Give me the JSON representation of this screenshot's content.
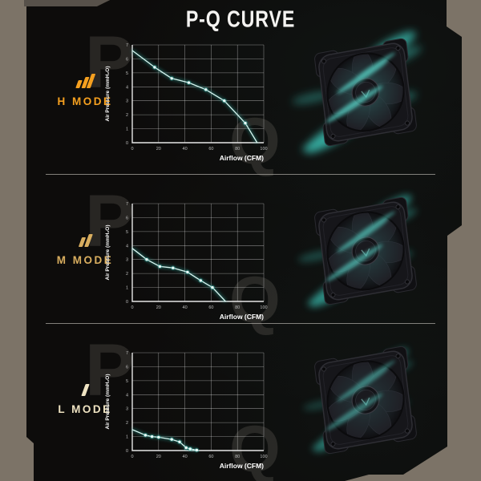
{
  "title": "P-Q CURVE",
  "watermark": {
    "p": "P",
    "q": "Q"
  },
  "modes": [
    {
      "label": "H MODE",
      "bars": 3,
      "color": "#F5A01F",
      "intensity": 1.0
    },
    {
      "label": "M MODE",
      "bars": 2,
      "color": "#D9AE5F",
      "intensity": 0.75
    },
    {
      "label": "L MODE",
      "bars": 1,
      "color": "#EFE3C2",
      "intensity": 0.5
    }
  ],
  "chart_data": [
    {
      "type": "line",
      "series_label": "H MODE",
      "xlabel": "Airflow (CFM)",
      "ylabel": "Air Pressure (mmH₂O)",
      "xlim": [
        0,
        100
      ],
      "ylim": [
        0,
        7
      ],
      "xticks": [
        0,
        20,
        40,
        60,
        80,
        100
      ],
      "yticks": [
        0,
        1,
        2,
        3,
        4,
        5,
        6,
        7
      ],
      "grid": true,
      "legend": "none",
      "line_color": "#D9F6F1",
      "glow_color": "#2FA89E",
      "points": [
        [
          0,
          6.6
        ],
        [
          17,
          5.4
        ],
        [
          30,
          4.6
        ],
        [
          43,
          4.3
        ],
        [
          56,
          3.8
        ],
        [
          70,
          3.0
        ],
        [
          86,
          1.4
        ],
        [
          95,
          0
        ]
      ],
      "markers": [
        [
          17,
          5.4
        ],
        [
          30,
          4.6
        ],
        [
          43,
          4.3
        ],
        [
          56,
          3.8
        ],
        [
          70,
          3.0
        ],
        [
          86,
          1.4
        ]
      ]
    },
    {
      "type": "line",
      "series_label": "M MODE",
      "xlabel": "Airflow (CFM)",
      "ylabel": "Air Pressure (mmH₂O)",
      "xlim": [
        0,
        100
      ],
      "ylim": [
        0,
        7
      ],
      "xticks": [
        0,
        20,
        40,
        60,
        80,
        100
      ],
      "yticks": [
        0,
        1,
        2,
        3,
        4,
        5,
        6,
        7
      ],
      "grid": true,
      "legend": "none",
      "line_color": "#D9F6F1",
      "glow_color": "#2FA89E",
      "points": [
        [
          0,
          3.8
        ],
        [
          11,
          3.0
        ],
        [
          21,
          2.5
        ],
        [
          31,
          2.4
        ],
        [
          42,
          2.1
        ],
        [
          52,
          1.5
        ],
        [
          61,
          1.0
        ],
        [
          71,
          0
        ]
      ],
      "markers": [
        [
          11,
          3.0
        ],
        [
          21,
          2.5
        ],
        [
          31,
          2.4
        ],
        [
          42,
          2.1
        ],
        [
          52,
          1.5
        ],
        [
          61,
          1.0
        ]
      ]
    },
    {
      "type": "line",
      "series_label": "L MODE",
      "xlabel": "Airflow (CFM)",
      "ylabel": "Air Pressure (mmH₂O)",
      "xlim": [
        0,
        100
      ],
      "ylim": [
        0,
        7
      ],
      "xticks": [
        0,
        20,
        40,
        60,
        80,
        100
      ],
      "yticks": [
        0,
        1,
        2,
        3,
        4,
        5,
        6,
        7
      ],
      "grid": true,
      "legend": "none",
      "line_color": "#D9F6F1",
      "glow_color": "#2FA89E",
      "points": [
        [
          0,
          1.5
        ],
        [
          10,
          1.1
        ],
        [
          15,
          1.0
        ],
        [
          20,
          0.95
        ],
        [
          30,
          0.8
        ],
        [
          36,
          0.62
        ],
        [
          41,
          0.2
        ],
        [
          44,
          0.12
        ],
        [
          49,
          0.03
        ]
      ],
      "markers": [
        [
          10,
          1.1
        ],
        [
          15,
          1.0
        ],
        [
          20,
          0.95
        ],
        [
          30,
          0.8
        ],
        [
          36,
          0.62
        ],
        [
          41,
          0.2
        ],
        [
          44,
          0.12
        ],
        [
          49,
          0.03
        ]
      ]
    }
  ],
  "colors": {
    "background": "#7C7367",
    "panel": "#0D0C0B",
    "divider": "#A8A5A0",
    "axis": "#E6E6E6",
    "tick_text": "#BDBDBD",
    "label_text": "#FFFFFF",
    "teal": "#38B7AB",
    "title_text": "#F4F3F1"
  }
}
